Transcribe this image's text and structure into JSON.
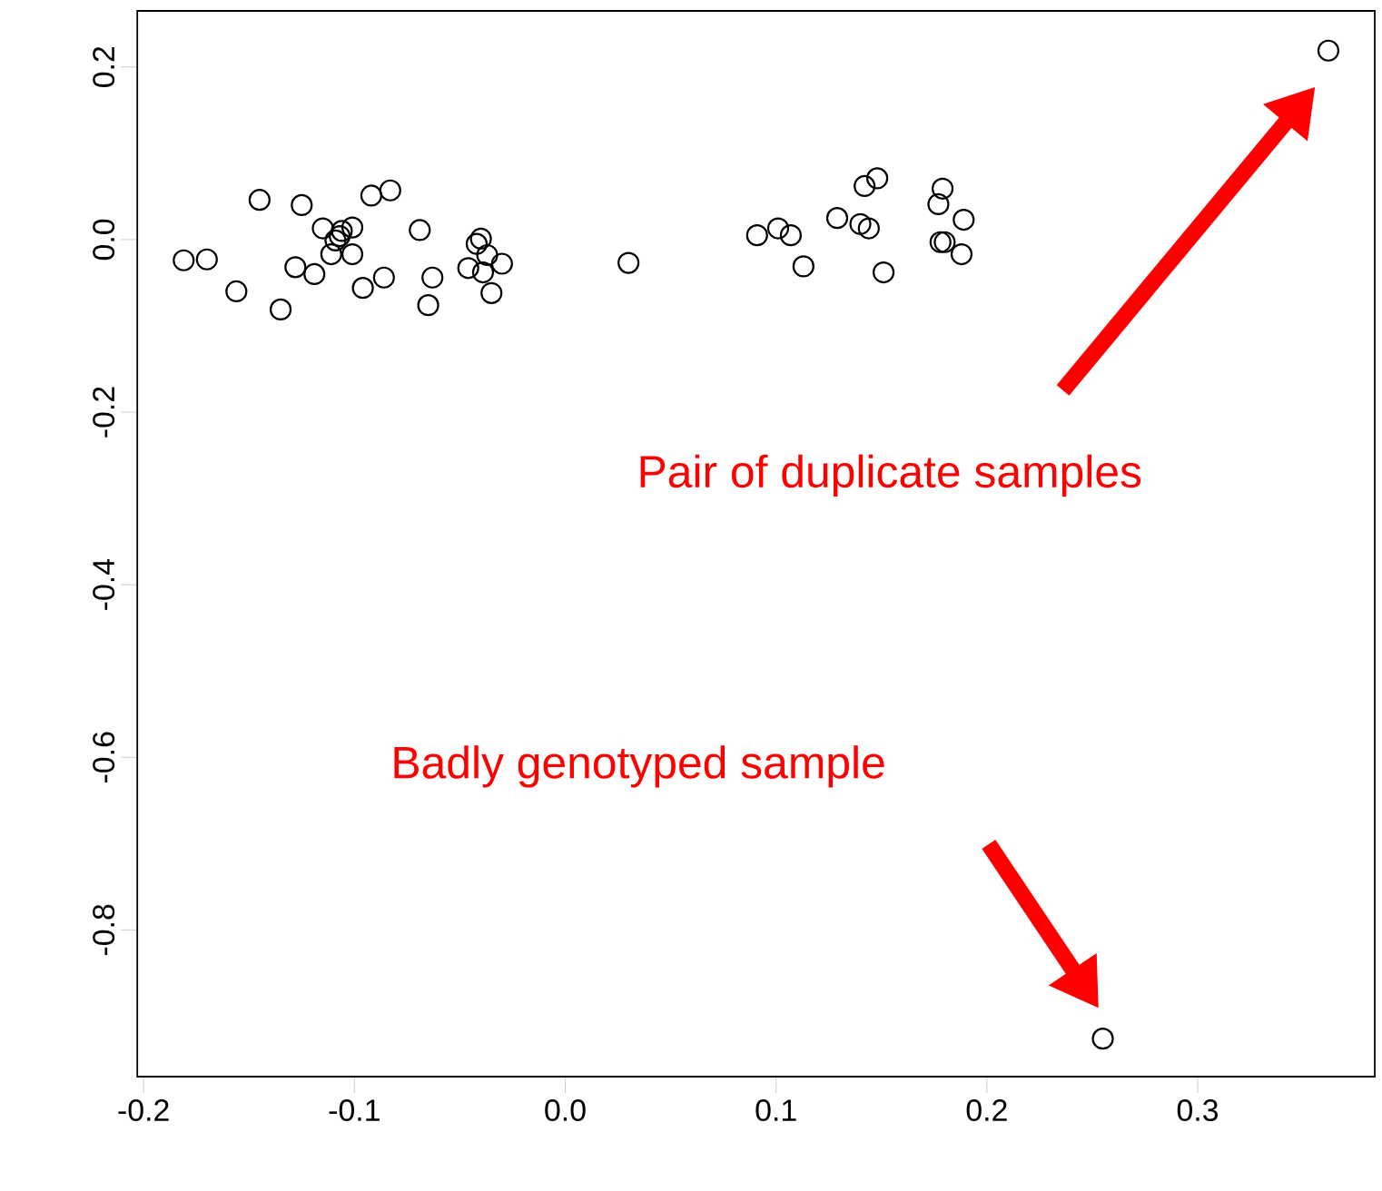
{
  "chart_data": {
    "type": "scatter",
    "x": [
      -0.181,
      -0.17,
      -0.156,
      -0.145,
      -0.135,
      -0.125,
      -0.128,
      -0.119,
      -0.115,
      -0.106,
      -0.101,
      -0.109,
      -0.111,
      -0.101,
      -0.107,
      -0.096,
      -0.086,
      -0.092,
      -0.083,
      -0.069,
      -0.063,
      -0.065,
      -0.046,
      -0.042,
      -0.04,
      -0.037,
      -0.03,
      -0.039,
      -0.035,
      0.03,
      0.091,
      0.101,
      0.107,
      0.113,
      0.129,
      0.142,
      0.148,
      0.14,
      0.144,
      0.151,
      0.179,
      0.177,
      0.189,
      0.178,
      0.18,
      0.188,
      0.362,
      0.255
    ],
    "values": [
      -0.024,
      -0.023,
      -0.06,
      0.046,
      -0.081,
      0.04,
      -0.032,
      -0.04,
      0.013,
      0.01,
      0.014,
      -0.001,
      -0.017,
      -0.017,
      0.004,
      -0.056,
      -0.044,
      0.051,
      0.057,
      0.011,
      -0.044,
      -0.076,
      -0.033,
      -0.005,
      0.001,
      -0.018,
      -0.028,
      -0.038,
      -0.062,
      -0.027,
      0.005,
      0.013,
      0.005,
      -0.031,
      0.025,
      0.062,
      0.071,
      0.018,
      0.013,
      -0.038,
      0.059,
      0.041,
      0.023,
      -0.003,
      -0.003,
      -0.017,
      0.219,
      -0.926
    ],
    "color": "#000000",
    "marker": "circle",
    "xlim": [
      -0.203,
      0.384
    ],
    "ylim": [
      -0.97,
      0.265
    ],
    "xticks": [
      -0.2,
      -0.1,
      {
        "value": 0,
        "label": "0.0"
      },
      0.1,
      0.2,
      0.3
    ],
    "yticks": [
      {
        "value": 0.2,
        "label": "0.2"
      },
      {
        "value": 0,
        "label": "0.0"
      },
      -0.2,
      -0.4,
      -0.6,
      -0.8
    ],
    "annotations": [
      "Pair of duplicate samples",
      "Badly genotyped sample"
    ]
  }
}
